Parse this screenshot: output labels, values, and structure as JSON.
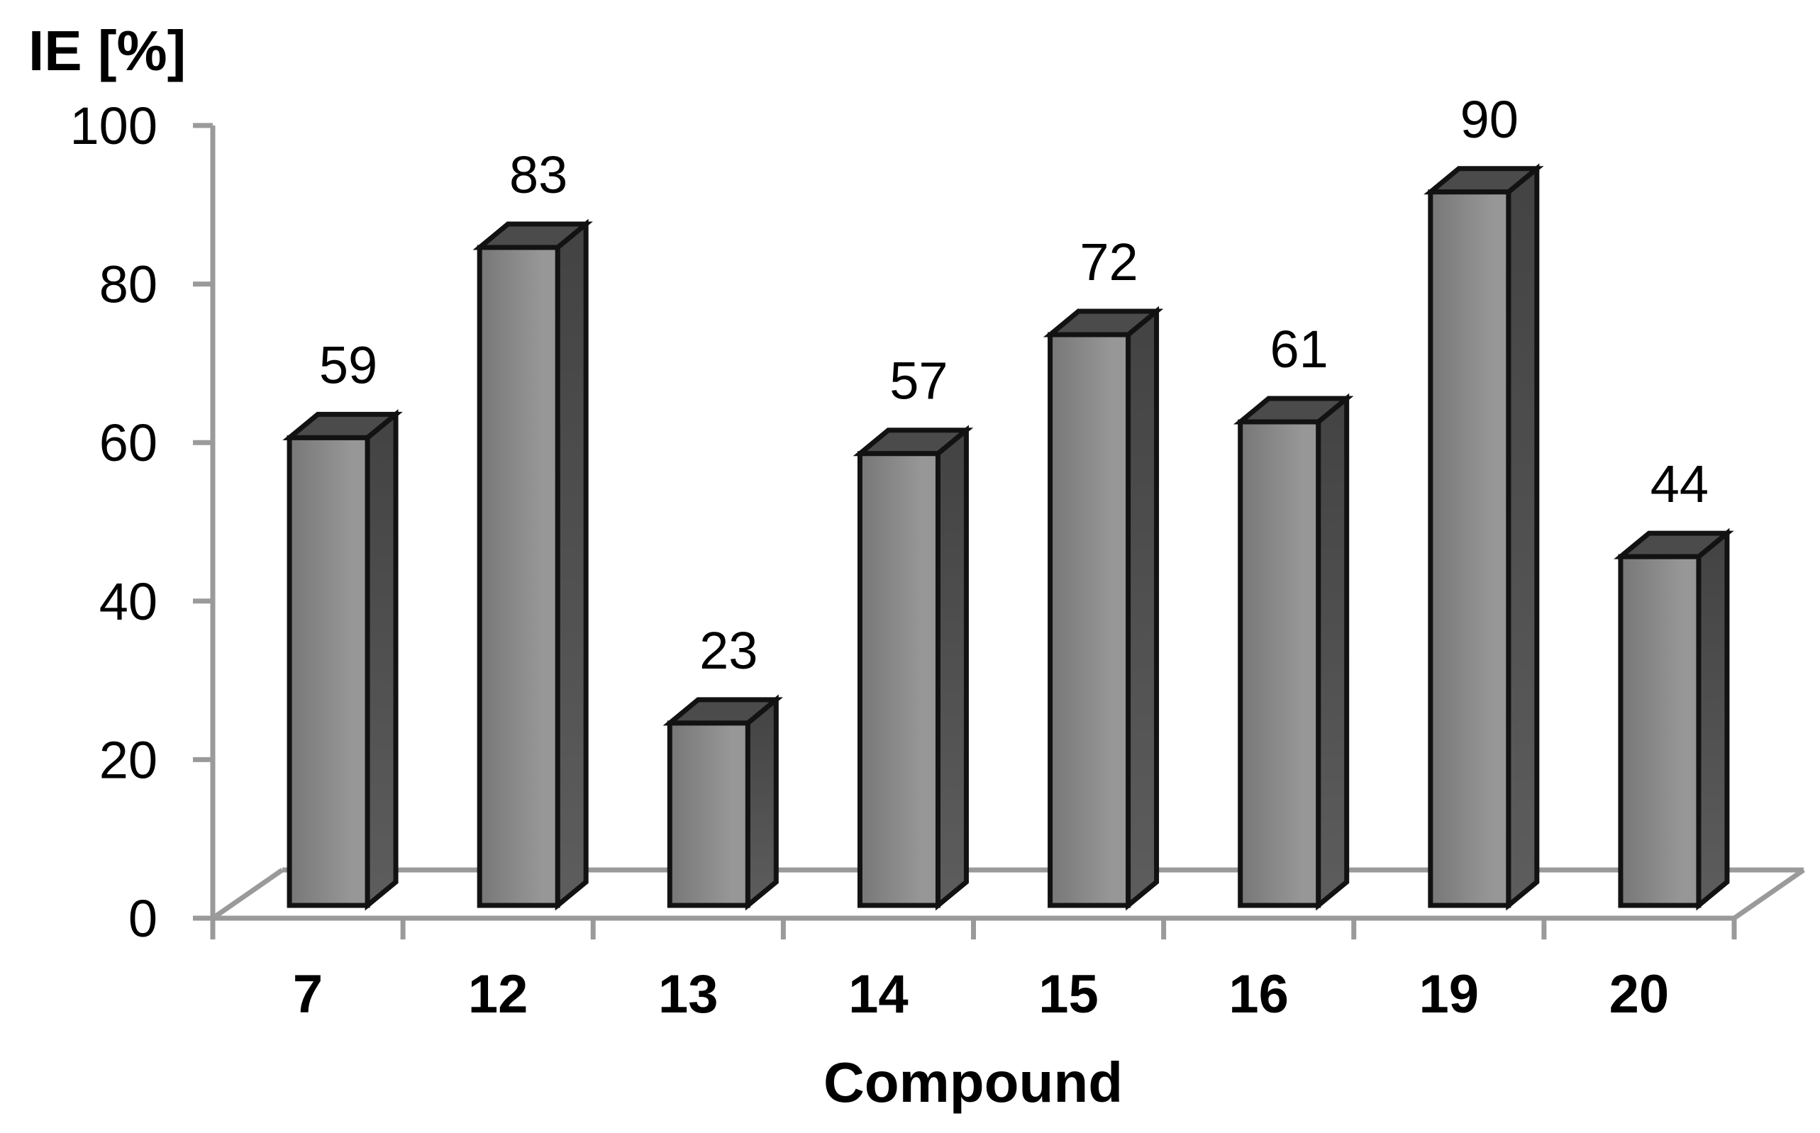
{
  "chart_data": {
    "type": "bar",
    "variant": "3d-column",
    "title": "",
    "ylabel": "IE [%]",
    "xlabel": "Compound",
    "categories": [
      "7",
      "12",
      "13",
      "14",
      "15",
      "16",
      "19",
      "20"
    ],
    "values": [
      59,
      83,
      23,
      57,
      72,
      61,
      90,
      44
    ],
    "value_labels_shown": true,
    "ylim": [
      0,
      100
    ],
    "yticks": [
      0,
      20,
      40,
      60,
      80,
      100
    ],
    "grid": false,
    "legend": "none",
    "colors": {
      "background": "#ffffff",
      "axis": "#9a9a9a",
      "bar_front_left": "#777777",
      "bar_front_right": "#979797",
      "bar_side_top": "#434343",
      "bar_side_bottom": "#5d5d5d",
      "bar_top": "#4b4b4b",
      "bar_outline": "#121212",
      "text": "#000000"
    }
  }
}
